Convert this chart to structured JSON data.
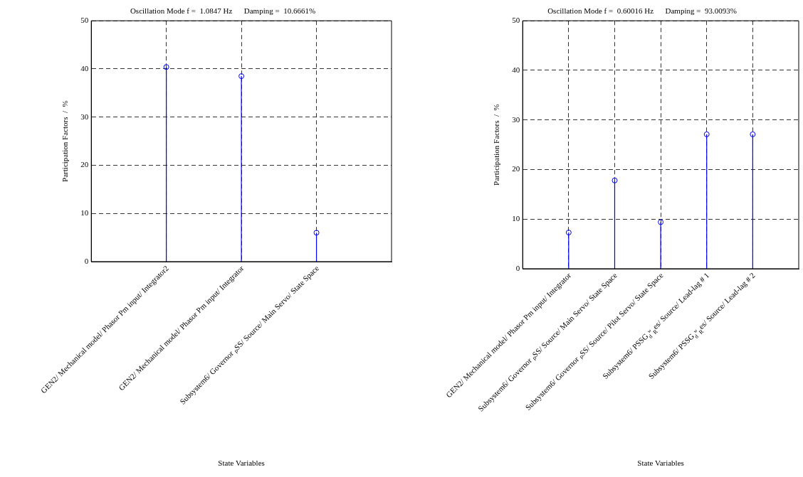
{
  "chart_data": [
    {
      "type": "lollipop",
      "title": "Oscillation Mode f =  1.0847 Hz      Damping =  10.6661%",
      "xlabel": "State Variables",
      "ylabel": "Participation Factors  /  %",
      "categories": [
        null,
        "GEN2/ Mechanical model/ Phasor Pm input/ Integrator2",
        "GEN2/ Mechanical model/ Phasor Pm input/ Integrator",
        "Subsystem6/ Governor ₚSS/ Source/ Main Servo/ State Space",
        null
      ],
      "values": [
        null,
        40.4,
        38.5,
        6.0,
        null
      ],
      "color": "#0000ff",
      "marker": "circle",
      "ylim": [
        0,
        50
      ],
      "yticks": [
        0,
        10,
        20,
        30,
        40,
        50
      ],
      "grid": true
    },
    {
      "type": "lollipop",
      "title": "Oscillation Mode f =  0.60016 Hz      Damping =  93.0093%",
      "xlabel": "State Variables",
      "ylabel": "Participation Factors  /  %",
      "categories": [
        null,
        "GEN2/ Mechanical model/ Phasor Pm input/ Integrator",
        "Subsystem6/ Governor ₚSS/ Source/ Main Servo/ State Space",
        "Subsystem6/ Governor ₚSS/ Source/ Pilot Servo/ State Space",
        "Subsystem6/ PSSG$_{d}$ʷ$_{R}$es/ Source/ Lead-lag # 1",
        "Subsystem6/ PSSG$_{d}$ʷ$_{R}$es/ Source/ Lead-lag # 2",
        null
      ],
      "values": [
        null,
        7.3,
        17.8,
        9.4,
        27.1,
        27.1,
        null
      ],
      "color": "#0000ff",
      "marker": "circle",
      "ylim": [
        0,
        50
      ],
      "yticks": [
        0,
        10,
        20,
        30,
        40,
        50
      ],
      "grid": true
    }
  ]
}
